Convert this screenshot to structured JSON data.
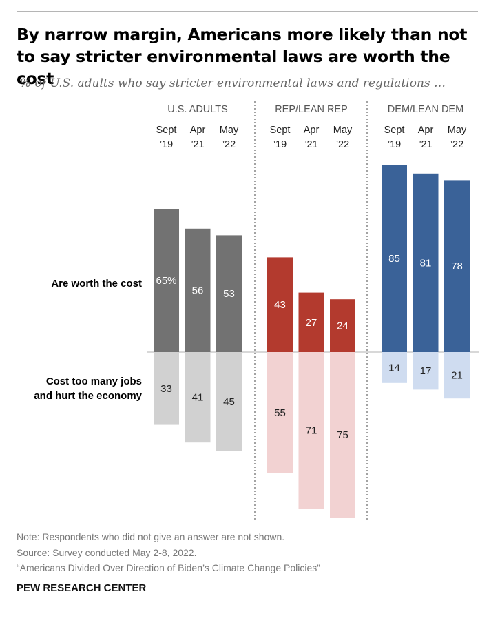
{
  "title": "By narrow margin, Americans more likely than not to say stricter environmental laws are worth the cost",
  "subtitle": "% of U.S. adults who say stricter environmental laws and regulations …",
  "chart_data": {
    "type": "bar",
    "row_labels": [
      {
        "lines": [
          "Are worth the cost"
        ]
      },
      {
        "lines": [
          "Cost too many jobs",
          "and hurt the economy"
        ]
      }
    ],
    "groups": [
      {
        "name": "U.S. ADULTS",
        "colors": {
          "worth": "#727272",
          "cost": "#d1d1d1"
        },
        "periods": [
          {
            "label": [
              "Sept",
              "’19"
            ],
            "worth": 65,
            "worth_label": "65%",
            "cost": 33,
            "cost_label": "33"
          },
          {
            "label": [
              "Apr",
              "’21"
            ],
            "worth": 56,
            "worth_label": "56",
            "cost": 41,
            "cost_label": "41"
          },
          {
            "label": [
              "May",
              "’22"
            ],
            "worth": 53,
            "worth_label": "53",
            "cost": 45,
            "cost_label": "45"
          }
        ]
      },
      {
        "name": "REP/LEAN REP",
        "colors": {
          "worth": "#b33a2e",
          "cost": "#f2d2d2"
        },
        "periods": [
          {
            "label": [
              "Sept",
              "’19"
            ],
            "worth": 43,
            "worth_label": "43",
            "cost": 55,
            "cost_label": "55"
          },
          {
            "label": [
              "Apr",
              "’21"
            ],
            "worth": 27,
            "worth_label": "27",
            "cost": 71,
            "cost_label": "71"
          },
          {
            "label": [
              "May",
              "’22"
            ],
            "worth": 24,
            "worth_label": "24",
            "cost": 75,
            "cost_label": "75"
          }
        ]
      },
      {
        "name": "DEM/LEAN DEM",
        "colors": {
          "worth": "#3a6298",
          "cost": "#cfdcf0"
        },
        "periods": [
          {
            "label": [
              "Sept",
              "’19"
            ],
            "worth": 85,
            "worth_label": "85",
            "cost": 14,
            "cost_label": "14"
          },
          {
            "label": [
              "Apr",
              "’21"
            ],
            "worth": 81,
            "worth_label": "81",
            "cost": 17,
            "cost_label": "17"
          },
          {
            "label": [
              "May",
              "’22"
            ],
            "worth": 78,
            "worth_label": "78",
            "cost": 21,
            "cost_label": "21"
          }
        ]
      }
    ]
  },
  "notes": {
    "note": "Note: Respondents who did not give an answer are not shown.",
    "source": "Source: Survey conducted May 2-8, 2022.",
    "report": "“Americans Divided Over Direction of Biden’s Climate Change Policies”"
  },
  "brand": "PEW RESEARCH CENTER"
}
